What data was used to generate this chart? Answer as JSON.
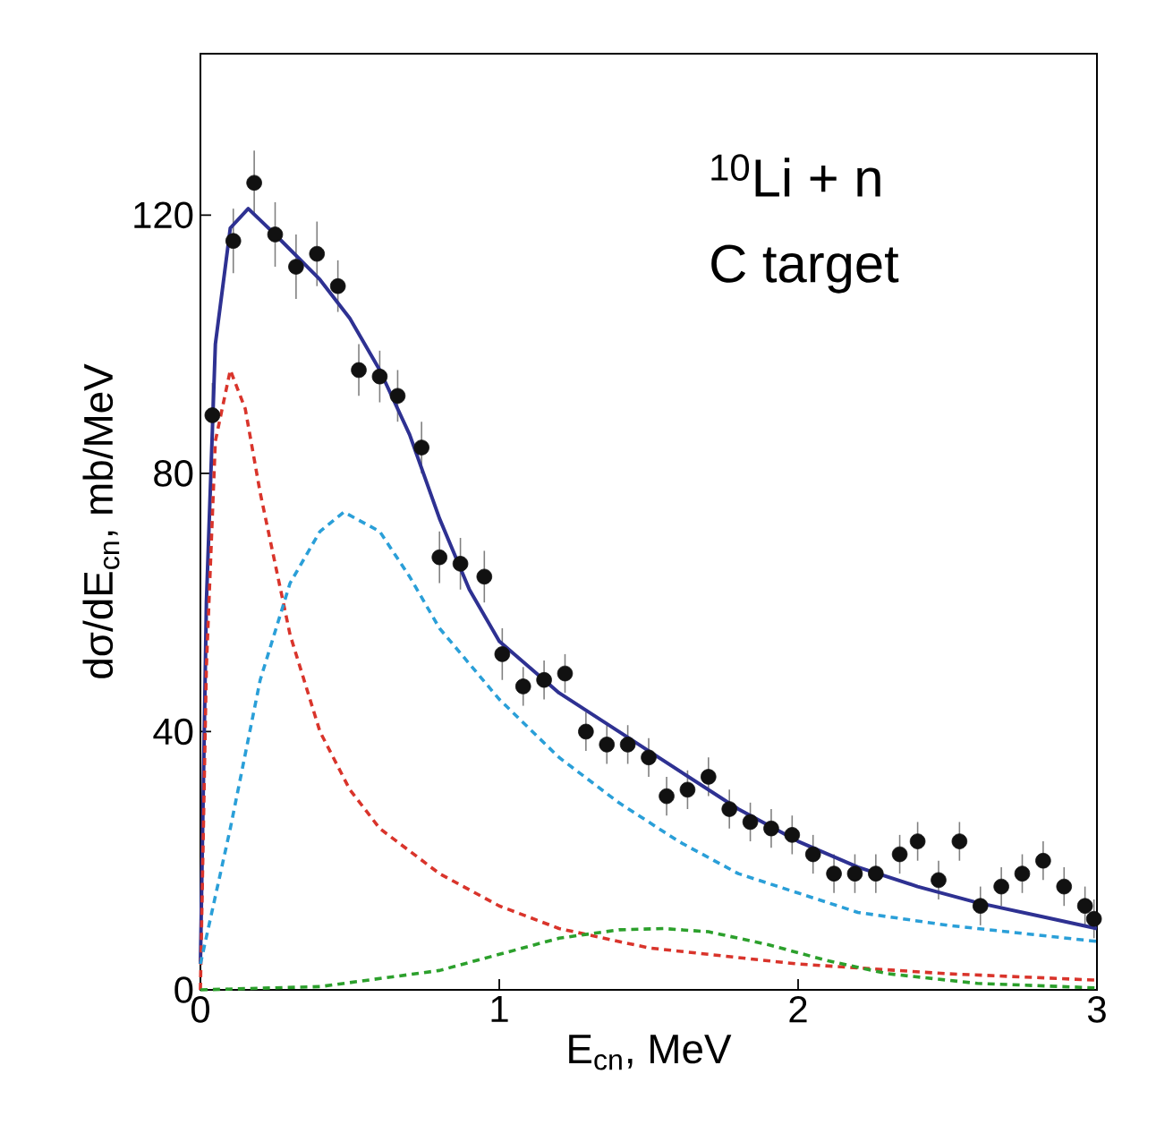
{
  "chart_data": {
    "type": "line",
    "xlabel": "E$_{cn}$, MeV",
    "ylabel": "dσ/dE$_{cn}$, mb/MeV",
    "annotations": [
      "$^{10}$Li + n",
      "C target"
    ],
    "xlim": [
      0,
      3
    ],
    "ylim": [
      0,
      145
    ],
    "xticks": [
      0,
      1,
      2,
      3
    ],
    "yticks": [
      0,
      40,
      80,
      120
    ],
    "grid": false,
    "marker": "circle",
    "series": [
      {
        "type": "scatter",
        "color": "#111111",
        "x": [
          0.04,
          0.11,
          0.18,
          0.25,
          0.32,
          0.39,
          0.46,
          0.53,
          0.6,
          0.66,
          0.74,
          0.8,
          0.87,
          0.95,
          1.01,
          1.08,
          1.15,
          1.22,
          1.29,
          1.36,
          1.43,
          1.5,
          1.56,
          1.63,
          1.7,
          1.77,
          1.84,
          1.91,
          1.98,
          2.05,
          2.12,
          2.19,
          2.26,
          2.34,
          2.4,
          2.47,
          2.54,
          2.61,
          2.68,
          2.75,
          2.82,
          2.89,
          2.96,
          2.99
        ],
        "values": [
          89,
          116,
          125,
          117,
          112,
          114,
          109,
          96,
          95,
          92,
          84,
          67,
          66,
          64,
          52,
          47,
          48,
          49,
          40,
          38,
          38,
          36,
          30,
          31,
          33,
          28,
          26,
          25,
          24,
          21,
          18,
          18,
          18,
          21,
          23,
          17,
          23,
          13,
          16,
          18,
          20,
          16,
          13,
          11
        ],
        "errors": [
          5,
          5,
          5,
          5,
          5,
          5,
          4,
          4,
          4,
          4,
          4,
          4,
          4,
          4,
          4,
          3,
          3,
          3,
          3,
          3,
          3,
          3,
          3,
          3,
          3,
          3,
          3,
          3,
          3,
          3,
          3,
          3,
          3,
          3,
          3,
          3,
          3,
          3,
          3,
          3,
          3,
          3,
          3,
          3
        ]
      },
      {
        "line_style": "solid",
        "marker": "none",
        "color": "#2e3192",
        "x": [
          0,
          0.02,
          0.05,
          0.1,
          0.16,
          0.25,
          0.4,
          0.5,
          0.6,
          0.7,
          0.8,
          0.9,
          1.0,
          1.2,
          1.4,
          1.6,
          1.8,
          2.0,
          2.2,
          2.4,
          2.6,
          2.8,
          3.0
        ],
        "values": [
          4,
          60,
          100,
          118,
          121,
          117,
          110,
          104,
          96,
          86,
          73,
          62,
          54,
          46,
          40,
          34,
          28,
          23,
          19,
          16,
          13.5,
          11.5,
          9.5
        ]
      },
      {
        "line_style": "dashed",
        "marker": "none",
        "color": "#d9342b",
        "x": [
          0,
          0.02,
          0.05,
          0.1,
          0.15,
          0.2,
          0.3,
          0.4,
          0.5,
          0.6,
          0.8,
          1.0,
          1.2,
          1.5,
          2.0,
          2.5,
          3.0
        ],
        "values": [
          0,
          50,
          85,
          96,
          90,
          77,
          55,
          40,
          31,
          25,
          18,
          13,
          9.5,
          6.5,
          4,
          2.5,
          1.5
        ]
      },
      {
        "line_style": "dashed",
        "marker": "none",
        "color": "#2a9fd8",
        "x": [
          0,
          0.1,
          0.2,
          0.3,
          0.4,
          0.48,
          0.6,
          0.7,
          0.8,
          1.0,
          1.2,
          1.4,
          1.6,
          1.8,
          2.0,
          2.2,
          2.5,
          3.0
        ],
        "values": [
          4,
          25,
          48,
          63,
          71,
          74,
          71,
          64,
          56,
          45,
          36,
          29,
          23,
          18,
          15,
          12,
          10,
          7.5
        ]
      },
      {
        "line_style": "dashed",
        "marker": "none",
        "color": "#2ca02c",
        "x": [
          0,
          0.4,
          0.8,
          1.0,
          1.2,
          1.4,
          1.55,
          1.7,
          1.9,
          2.1,
          2.3,
          2.6,
          3.0
        ],
        "values": [
          0,
          0.5,
          3,
          5.5,
          8,
          9.3,
          9.5,
          9,
          7,
          4.5,
          2.5,
          1,
          0.3
        ]
      }
    ]
  }
}
